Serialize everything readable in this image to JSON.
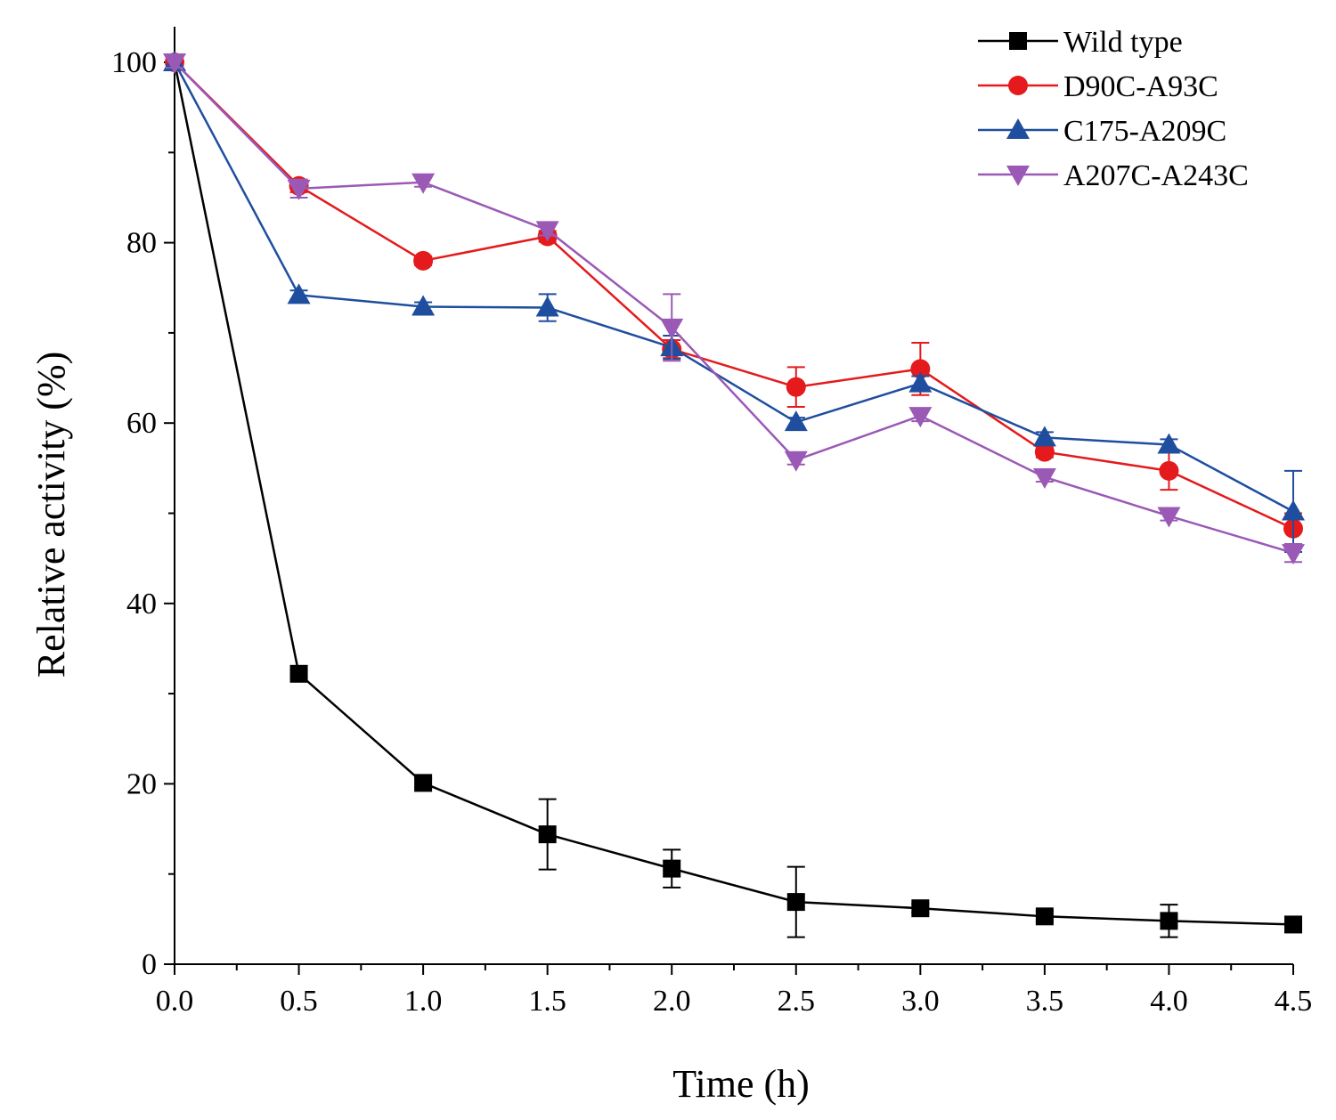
{
  "chart_data": {
    "type": "line",
    "title": "",
    "xlabel": "Time (h)",
    "ylabel": "Relative activity (%)",
    "xlim": [
      0,
      4.5
    ],
    "ylim": [
      0,
      100
    ],
    "xticks": [
      0,
      0.5,
      1.0,
      1.5,
      2.0,
      2.5,
      3.0,
      3.5,
      4.0,
      4.5
    ],
    "xtick_labels": [
      "0.0",
      "0.5",
      "1.0",
      "1.5",
      "2.0",
      "2.5",
      "3.0",
      "3.5",
      "4.0",
      "4.5"
    ],
    "yticks": [
      0,
      20,
      40,
      60,
      80,
      100
    ],
    "ytick_labels": [
      "0",
      "20",
      "40",
      "60",
      "80",
      "100"
    ],
    "grid": false,
    "legend_position": "top-right",
    "x": [
      0,
      0.5,
      1.0,
      1.5,
      2.0,
      2.5,
      3.0,
      3.5,
      4.0,
      4.5
    ],
    "series": [
      {
        "name": "Wild type",
        "color": "#000000",
        "marker": "square",
        "values": [
          100,
          32.2,
          20.1,
          14.4,
          10.6,
          6.9,
          6.2,
          5.3,
          4.8,
          4.4
        ],
        "errors": [
          0.8,
          0.4,
          0.5,
          3.9,
          2.1,
          3.9,
          0.5,
          0.6,
          1.8,
          0.5
        ]
      },
      {
        "name": "D90C-A93C",
        "color": "#e41a1c",
        "marker": "circle",
        "values": [
          100,
          86.3,
          78.0,
          80.7,
          68.2,
          64.0,
          66.0,
          56.8,
          54.7,
          48.3
        ],
        "errors": [
          0.6,
          0.7,
          0.5,
          0.6,
          1.0,
          2.2,
          2.9,
          0.6,
          2.1,
          1.7
        ]
      },
      {
        "name": "C175-A209C",
        "color": "#1f4e9e",
        "marker": "triangle-up",
        "values": [
          100,
          74.2,
          72.9,
          72.8,
          68.4,
          60.1,
          64.4,
          58.4,
          57.6,
          50.2
        ],
        "errors": [
          0.6,
          0.5,
          0.5,
          1.5,
          1.3,
          0.5,
          0.8,
          0.6,
          0.6,
          4.5
        ]
      },
      {
        "name": "A207C-A243C",
        "color": "#9b59b6",
        "marker": "triangle-down",
        "values": [
          100,
          86.0,
          86.7,
          81.4,
          70.6,
          55.9,
          60.8,
          54.0,
          49.7,
          45.6
        ],
        "errors": [
          0.6,
          1.0,
          0.5,
          0.6,
          3.7,
          0.5,
          0.6,
          0.5,
          0.5,
          1.0
        ]
      }
    ]
  }
}
